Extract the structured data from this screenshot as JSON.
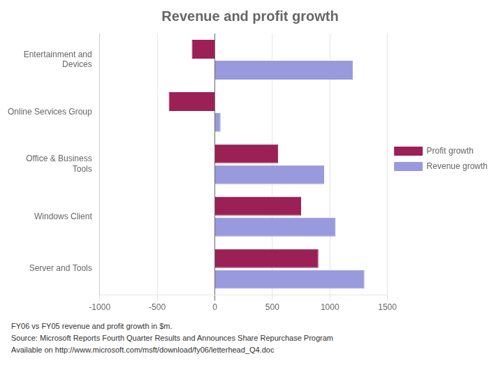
{
  "chart_data": {
    "type": "bar",
    "orientation": "horizontal",
    "title": "Revenue and profit growth",
    "categories": [
      "Entertainment and\nDevices",
      "Online Services Group",
      "Office & Business\nTools",
      "Windows Client",
      "Server and Tools"
    ],
    "series": [
      {
        "name": "Profit growth",
        "color": "#9B2056",
        "values": [
          -200,
          -400,
          550,
          750,
          900
        ]
      },
      {
        "name": "Revenue growth",
        "color": "#9999DD",
        "values": [
          1200,
          50,
          950,
          1050,
          1300
        ]
      }
    ],
    "xlim": [
      -1000,
      1500
    ],
    "xticks": [
      -1000,
      -500,
      0,
      500,
      1000,
      1500
    ],
    "grid": true,
    "legend": "right",
    "annotations": [
      "FY06 vs FY05 revenue and profit growth in $m.",
      "Source: Microsoft Reports Fourth Quarter Results and Announces Share Repurchase Program",
      "Available on http://www.microsoft.com/msft/download/fy06/letterhead_Q4.doc"
    ]
  }
}
